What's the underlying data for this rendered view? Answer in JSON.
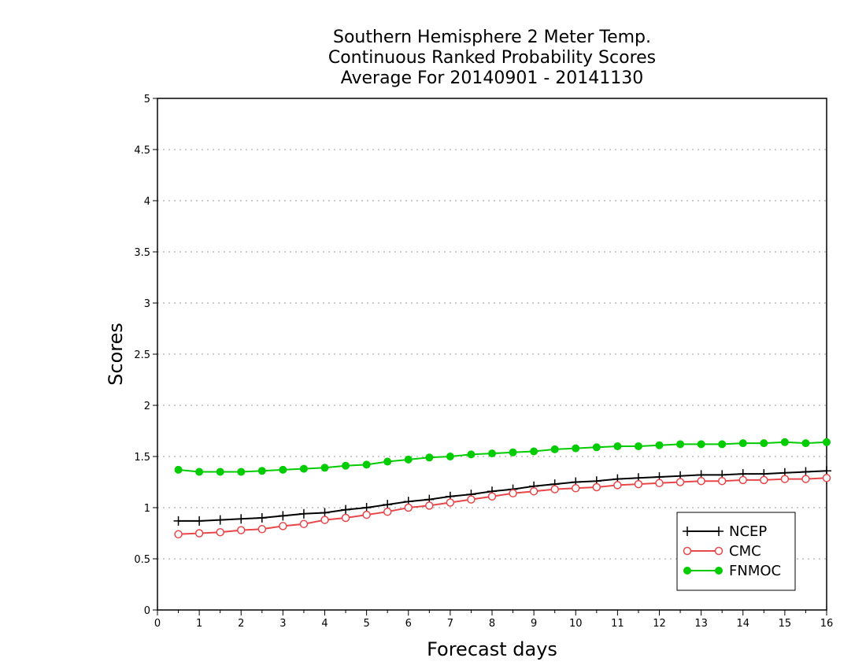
{
  "chart_data": {
    "type": "line",
    "title": [
      "Southern Hemisphere 2 Meter Temp.",
      "Continuous Ranked Probability Scores",
      "Average For 20140901 - 20141130"
    ],
    "xlabel": "Forecast days",
    "ylabel": "Scores",
    "xlim": [
      0,
      16
    ],
    "ylim": [
      0,
      5
    ],
    "x_ticks": [
      "0",
      "1",
      "2",
      "3",
      "4",
      "5",
      "6",
      "7",
      "8",
      "9",
      "10",
      "11",
      "12",
      "13",
      "14",
      "15",
      "16"
    ],
    "y_ticks": [
      "0",
      "0.5",
      "1",
      "1.5",
      "2",
      "2.5",
      "3",
      "3.5",
      "4",
      "4.5",
      "5"
    ],
    "grid": "horizontal dotted",
    "legend_position": "bottom-right",
    "x": [
      0.5,
      1,
      1.5,
      2,
      2.5,
      3,
      3.5,
      4,
      4.5,
      5,
      5.5,
      6,
      6.5,
      7,
      7.5,
      8,
      8.5,
      9,
      9.5,
      10,
      10.5,
      11,
      11.5,
      12,
      12.5,
      13,
      13.5,
      14,
      14.5,
      15,
      15.5,
      16
    ],
    "series": [
      {
        "name": "NCEP",
        "color": "#000000",
        "marker": "plus",
        "values": [
          0.87,
          0.87,
          0.88,
          0.89,
          0.9,
          0.92,
          0.94,
          0.95,
          0.98,
          1.0,
          1.03,
          1.06,
          1.08,
          1.11,
          1.13,
          1.16,
          1.18,
          1.21,
          1.23,
          1.25,
          1.26,
          1.28,
          1.29,
          1.3,
          1.31,
          1.32,
          1.32,
          1.33,
          1.33,
          1.34,
          1.35,
          1.36
        ]
      },
      {
        "name": "CMC",
        "color": "#e8474a",
        "marker": "open-circle",
        "values": [
          0.74,
          0.75,
          0.76,
          0.78,
          0.79,
          0.82,
          0.84,
          0.88,
          0.9,
          0.93,
          0.96,
          1.0,
          1.02,
          1.05,
          1.08,
          1.11,
          1.14,
          1.16,
          1.18,
          1.19,
          1.2,
          1.22,
          1.23,
          1.24,
          1.25,
          1.26,
          1.26,
          1.27,
          1.27,
          1.28,
          1.28,
          1.29
        ]
      },
      {
        "name": "FNMOC",
        "color": "#00cc00",
        "marker": "filled-circle",
        "values": [
          1.37,
          1.35,
          1.35,
          1.35,
          1.36,
          1.37,
          1.38,
          1.39,
          1.41,
          1.42,
          1.45,
          1.47,
          1.49,
          1.5,
          1.52,
          1.53,
          1.54,
          1.55,
          1.57,
          1.58,
          1.59,
          1.6,
          1.6,
          1.61,
          1.62,
          1.62,
          1.62,
          1.63,
          1.63,
          1.64,
          1.63,
          1.64
        ]
      }
    ]
  }
}
